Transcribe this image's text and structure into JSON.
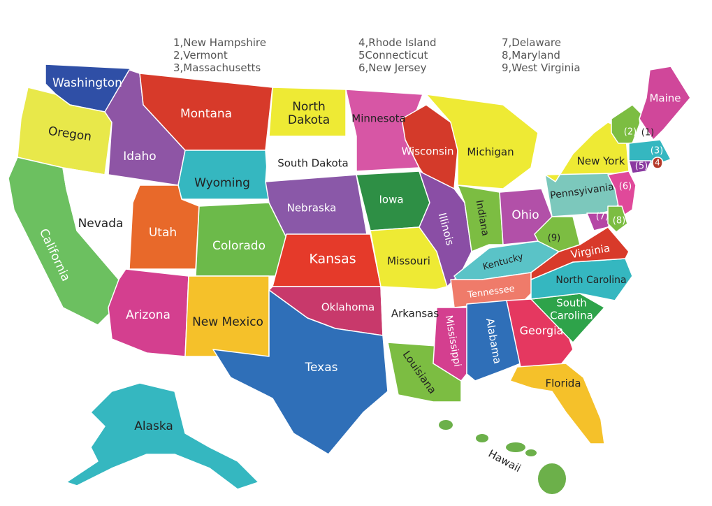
{
  "legend": [
    [
      "1,New Hampshire",
      "2,Vermont",
      "3,Massachusetts"
    ],
    [
      "4,Rhode Island",
      "5Connecticut",
      "6,New Jersey"
    ],
    [
      "7,Delaware",
      "8,Maryland",
      "9,West Virginia"
    ]
  ],
  "states": {
    "washington": {
      "label": "Washington",
      "color": "#2f4fa6"
    },
    "oregon": {
      "label": "Oregon",
      "color": "#e8e84a"
    },
    "california": {
      "label": "California",
      "color": "#6cc060"
    },
    "nevada": {
      "label": "Nevada",
      "color": "#ffffff"
    },
    "idaho": {
      "label": "Idaho",
      "color": "#8e55a5"
    },
    "montana": {
      "label": "Montana",
      "color": "#d73a2a"
    },
    "wyoming": {
      "label": "Wyoming",
      "color": "#35b7c0"
    },
    "utah": {
      "label": "Utah",
      "color": "#e8692a"
    },
    "colorado": {
      "label": "Colorado",
      "color": "#6cba4a"
    },
    "arizona": {
      "label": "Arizona",
      "color": "#d43f8f"
    },
    "new_mexico": {
      "label": "New Mexico",
      "color": "#f5c12a"
    },
    "north_dakota": {
      "label": "North Dakota",
      "label2": "Dakota",
      "label1": "North",
      "color": "#eeea34"
    },
    "south_dakota": {
      "label": "South Dakota",
      "color": "#ffffff"
    },
    "nebraska": {
      "label": "Nebraska",
      "color": "#8a58a8"
    },
    "kansas": {
      "label": "Kansas",
      "color": "#e53a2a"
    },
    "oklahoma": {
      "label": "Oklahoma",
      "color": "#c8396b"
    },
    "texas": {
      "label": "Texas",
      "color": "#2f6fb8"
    },
    "minnesota": {
      "label": "Minnesota",
      "color": "#d756a5"
    },
    "iowa": {
      "label": "Iowa",
      "color": "#2e8f45"
    },
    "missouri": {
      "label": "Missouri",
      "color": "#eeea34"
    },
    "arkansas": {
      "label": "Arkansas",
      "color": "#ffffff"
    },
    "louisiana": {
      "label": "Louisiana",
      "color": "#7cbd42"
    },
    "wisconsin": {
      "label": "Wisconsin",
      "color": "#d43a2a"
    },
    "michigan": {
      "label": "Michigan",
      "color": "#eeea34"
    },
    "illinois": {
      "label": "Illinois",
      "color": "#8a4ea5"
    },
    "indiana": {
      "label": "Indiana",
      "color": "#7cbd42"
    },
    "ohio": {
      "label": "Ohio",
      "color": "#b250a8"
    },
    "kentucky": {
      "label": "Kentucky",
      "color": "#5ac3c7"
    },
    "tennessee": {
      "label": "Tennessee",
      "color": "#ef7b6a"
    },
    "mississippi": {
      "label": "Mississippi",
      "color": "#d43f8f"
    },
    "alabama": {
      "label": "Alabama",
      "color": "#2f6fb8"
    },
    "georgia": {
      "label": "Georgia",
      "color": "#e53860"
    },
    "florida": {
      "label": "Florida",
      "color": "#f5c12a"
    },
    "south_carolina": {
      "label": "South Carolina",
      "label1": "South",
      "label2": "Carolina",
      "color": "#2ea34a"
    },
    "north_carolina": {
      "label": "North Carolina",
      "color": "#35b7c0"
    },
    "virginia": {
      "label": "Virginia",
      "color": "#d83a2a"
    },
    "west_virginia": {
      "label": "(9)",
      "color": "#7cbd42"
    },
    "pennsylvania": {
      "label": "Pennsyivania",
      "color": "#7cc8bc"
    },
    "new_york": {
      "label": "New York",
      "color": "#eeea34"
    },
    "new_jersey": {
      "label": "(6)",
      "color": "#e0499a"
    },
    "delaware": {
      "label": "(7)",
      "color": "#b546a5"
    },
    "maryland": {
      "label": "(8)",
      "color": "#7cbd42"
    },
    "vermont": {
      "label": "(2)",
      "color": "#7cbd42"
    },
    "new_hampshire": {
      "label": "(1)",
      "color": "#ffffff"
    },
    "maine": {
      "label": "Maine",
      "color": "#d0479a"
    },
    "massachusetts": {
      "label": "(3)",
      "color": "#35b7c0"
    },
    "connecticut": {
      "label": "(5)",
      "color": "#8a3aa0"
    },
    "rhode_island": {
      "label": "(4)",
      "color": "#b53a2a"
    },
    "alaska": {
      "label": "Alaska",
      "color": "#35b7c0"
    },
    "hawaii": {
      "label": "Hawaii",
      "color": "#6cb04a"
    }
  }
}
